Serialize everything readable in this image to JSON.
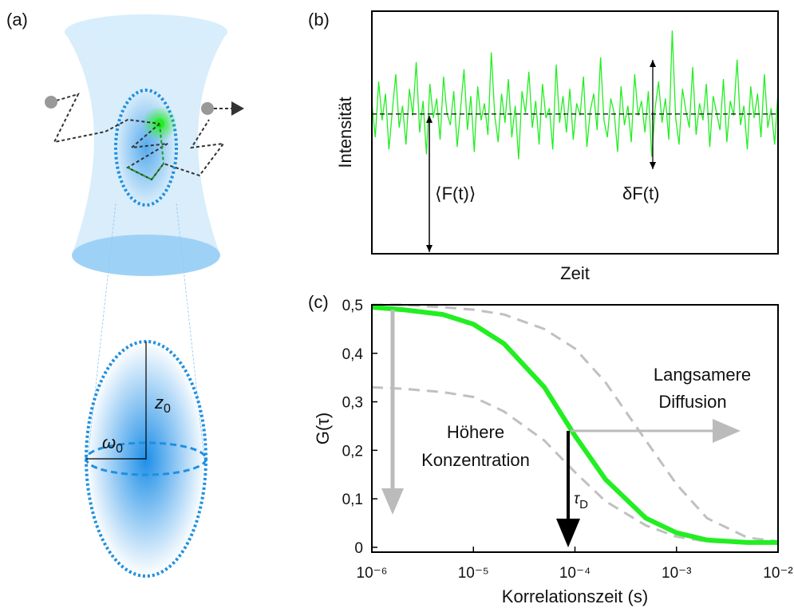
{
  "diagram": {
    "label": "(a)",
    "z_label": {
      "text": "z",
      "sub": "0"
    },
    "w_label": {
      "text": "ω",
      "sub": "0"
    }
  },
  "chart_data": [
    {
      "type": "line",
      "label": "(b)",
      "xlabel": "Zeit",
      "ylabel": "Intensität",
      "annotations": [
        "⟨F(t)⟩",
        "δF(t)"
      ],
      "color": "#22ee22",
      "ylim": [
        0,
        1
      ],
      "hline": 0.576,
      "values": [
        0.62,
        0.48,
        0.71,
        0.55,
        0.66,
        0.43,
        0.59,
        0.74,
        0.52,
        0.61,
        0.45,
        0.68,
        0.57,
        0.79,
        0.5,
        0.63,
        0.41,
        0.7,
        0.56,
        0.64,
        0.47,
        0.73,
        0.58,
        0.53,
        0.67,
        0.44,
        0.6,
        0.76,
        0.51,
        0.65,
        0.42,
        0.69,
        0.55,
        0.62,
        0.49,
        0.83,
        0.57,
        0.46,
        0.66,
        0.54,
        0.72,
        0.48,
        0.61,
        0.39,
        0.67,
        0.58,
        0.75,
        0.52,
        0.63,
        0.45,
        0.7,
        0.56,
        0.6,
        0.43,
        0.78,
        0.54,
        0.65,
        0.5,
        0.68,
        0.47,
        0.62,
        0.57,
        0.73,
        0.44,
        0.59,
        0.66,
        0.51,
        0.81,
        0.55,
        0.48,
        0.64,
        0.58,
        0.42,
        0.69,
        0.53,
        0.61,
        0.46,
        0.74,
        0.57,
        0.63,
        0.5,
        0.67,
        0.4,
        0.6,
        0.71,
        0.54,
        0.64,
        0.47,
        0.92,
        0.56,
        0.45,
        0.68,
        0.59,
        0.52,
        0.77,
        0.49,
        0.62,
        0.55,
        0.7,
        0.44,
        0.65,
        0.58,
        0.51,
        0.72,
        0.46,
        0.63,
        0.57,
        0.8,
        0.53,
        0.61,
        0.43,
        0.69,
        0.56,
        0.66,
        0.48,
        0.74,
        0.52,
        0.6,
        0.45,
        0.67
      ]
    },
    {
      "type": "line",
      "label": "(c)",
      "xlabel": "Korrelationszeit (s)",
      "ylabel": "G(τ)",
      "log_x": true,
      "annotations": {
        "slow": [
          "Langsamere",
          "Diffusion"
        ],
        "conc": [
          "Höhere",
          "Konzentration"
        ],
        "tau": {
          "text": "τ",
          "sub": "D"
        }
      },
      "xlim": [
        1e-06,
        0.01
      ],
      "ylim": [
        -0.01,
        0.5
      ],
      "xticks": [
        {
          "value": 1e-06,
          "label": "10⁻⁶"
        },
        {
          "value": 1e-05,
          "label": "10⁻⁵"
        },
        {
          "value": 0.0001,
          "label": "10⁻⁴"
        },
        {
          "value": 0.001,
          "label": "10⁻³"
        },
        {
          "value": 0.01,
          "label": "10⁻²"
        }
      ],
      "yticks": [
        0,
        {
          "value": 0.1,
          "label": "0,1"
        },
        {
          "value": 0.2,
          "label": "0,2"
        },
        {
          "value": 0.3,
          "label": "0,3"
        },
        {
          "value": 0.4,
          "label": "0,4"
        },
        {
          "value": 0.5,
          "label": "0,5"
        }
      ],
      "x": [
        1e-06,
        2e-06,
        5e-06,
        1e-05,
        2e-05,
        5e-05,
        0.0001,
        0.0002,
        0.0005,
        0.001,
        0.002,
        0.005,
        0.01
      ],
      "series": [
        {
          "color": "#c0c0c0",
          "dashed": true,
          "values": [
            0.5,
            0.5,
            0.495,
            0.49,
            0.48,
            0.45,
            0.41,
            0.34,
            0.22,
            0.13,
            0.06,
            0.02,
            0.012
          ]
        },
        {
          "color": "#c0c0c0",
          "dashed": true,
          "values": [
            0.33,
            0.327,
            0.32,
            0.31,
            0.28,
            0.22,
            0.155,
            0.095,
            0.045,
            0.022,
            0.012,
            0.008,
            0.008
          ]
        },
        {
          "color": "#22ee22",
          "dashed": false,
          "values": [
            0.495,
            0.49,
            0.48,
            0.46,
            0.42,
            0.33,
            0.23,
            0.14,
            0.06,
            0.03,
            0.015,
            0.01,
            0.01
          ]
        }
      ]
    }
  ]
}
